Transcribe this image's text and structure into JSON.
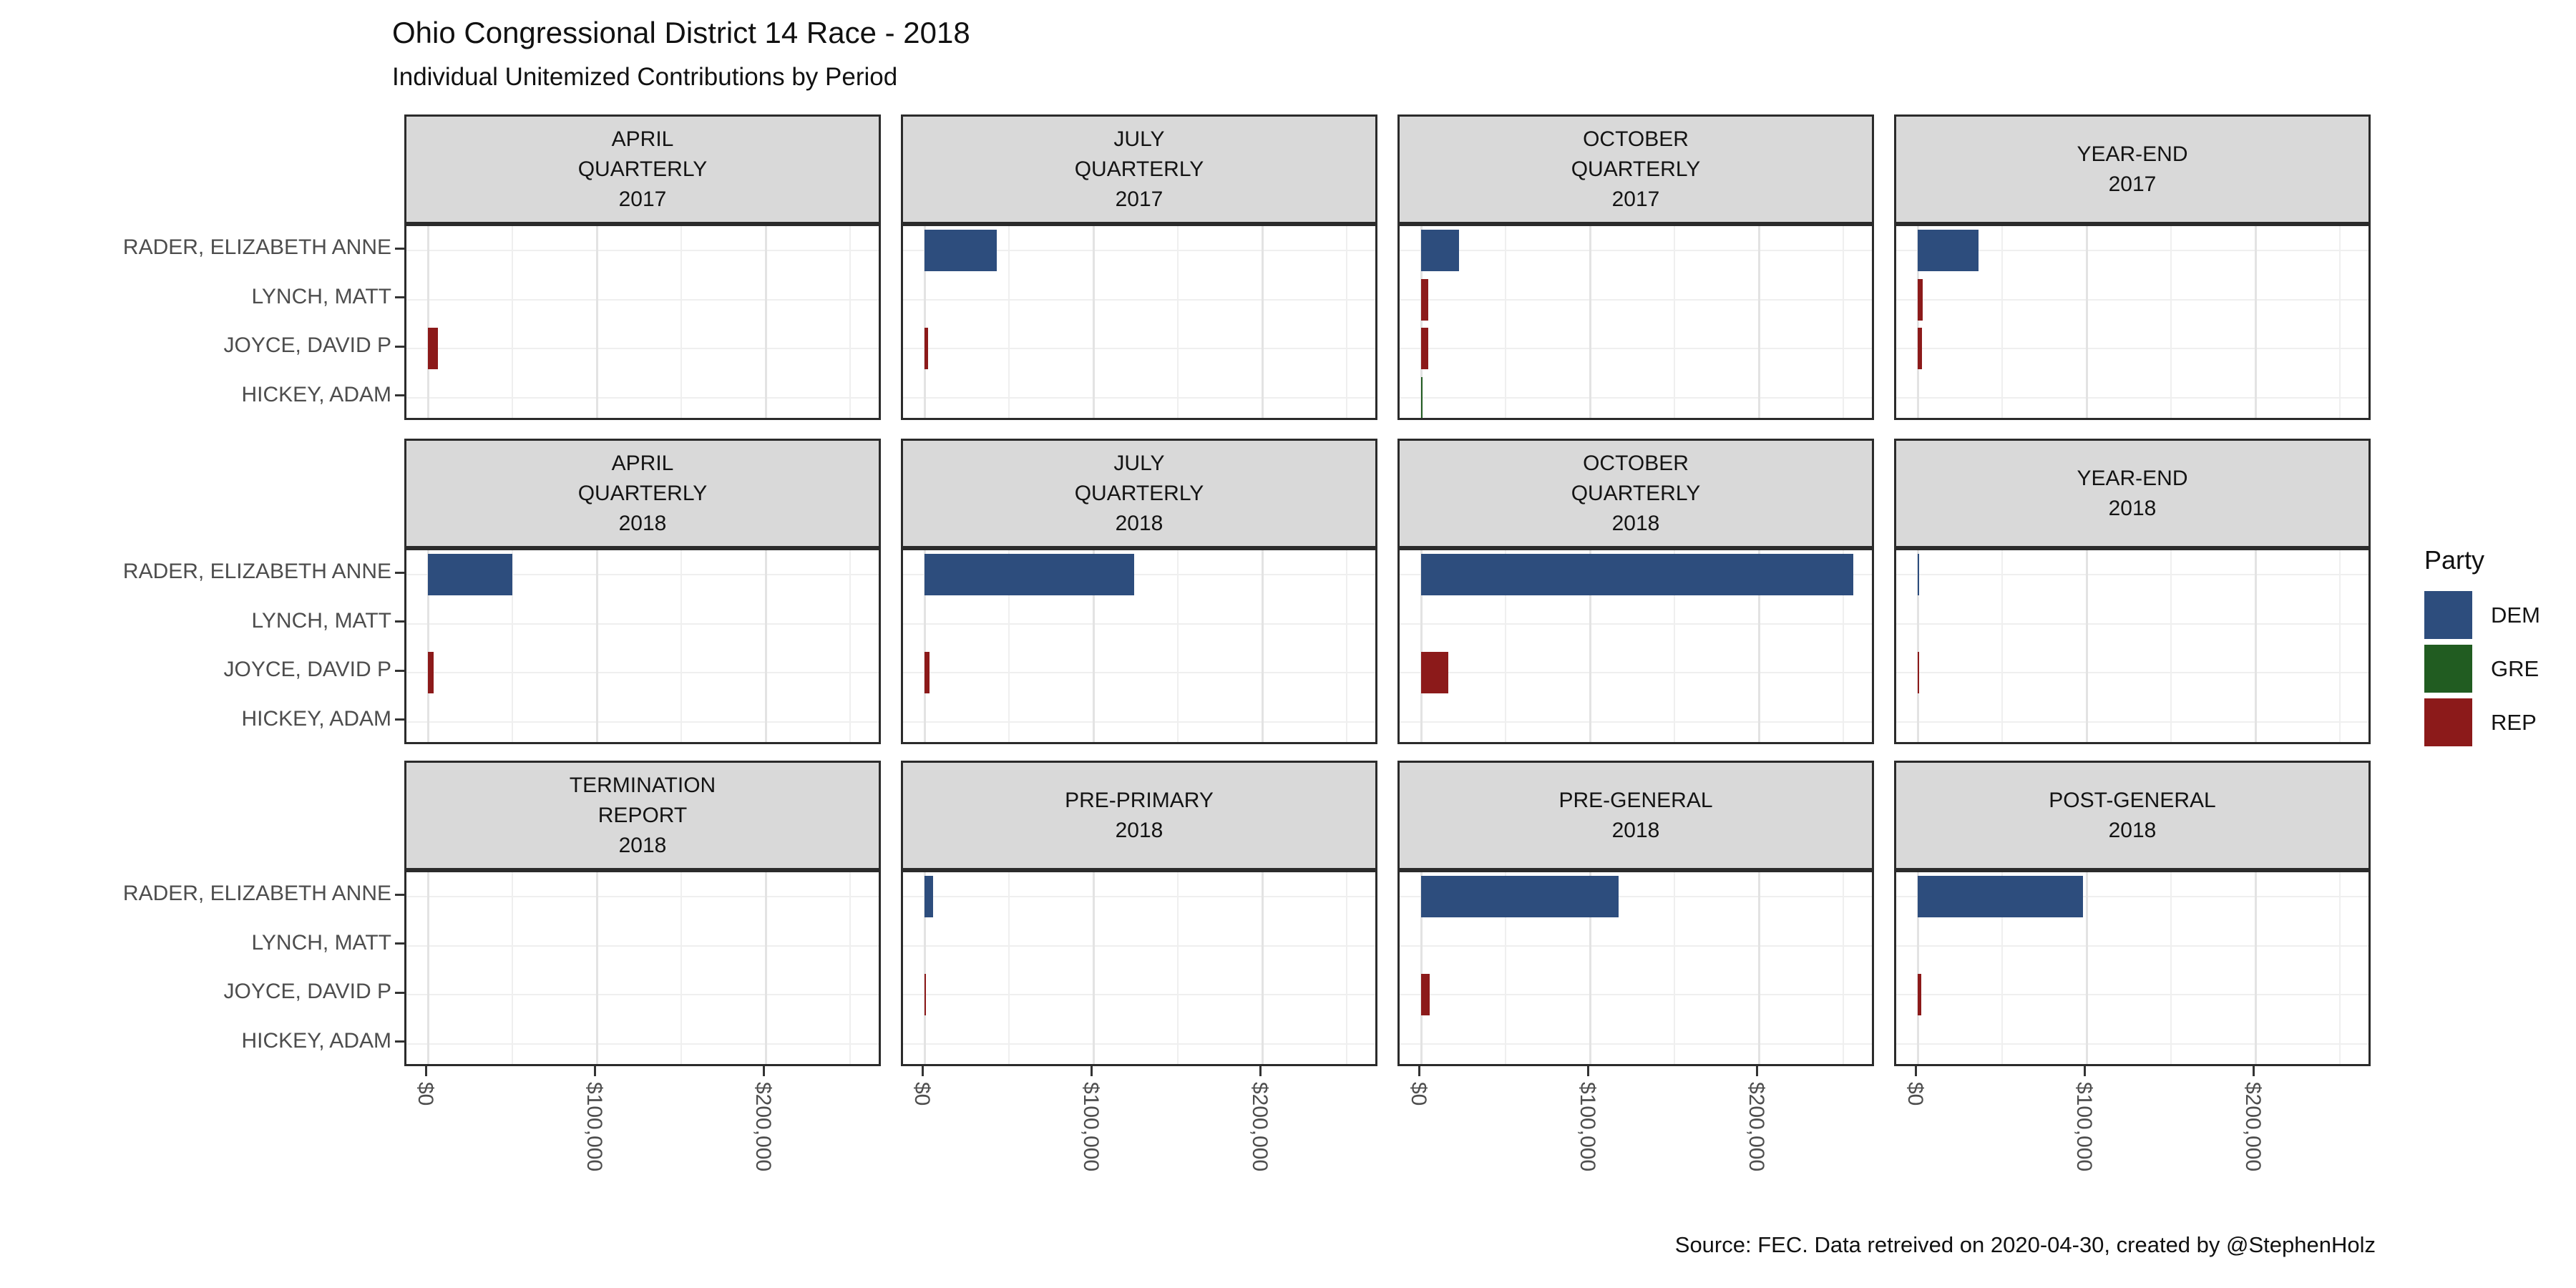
{
  "title": "Ohio Congressional District 14 Race - 2018",
  "subtitle": "Individual Unitemized Contributions by Period",
  "caption": "Source: FEC. Data retreived on 2020-04-30, created by @StephenHolz",
  "legend": {
    "title": "Party",
    "entries": [
      {
        "label": "DEM",
        "color": "#2d4d7d"
      },
      {
        "label": "GRE",
        "color": "#215c21"
      },
      {
        "label": "REP",
        "color": "#8c1a1a"
      }
    ]
  },
  "chart_data": {
    "type": "bar",
    "orientation": "horizontal",
    "title": "Ohio Congressional District 14 Race - 2018",
    "subtitle": "Individual Unitemized Contributions by Period",
    "candidates": [
      "RADER, ELIZABETH ANNE",
      "LYNCH, MATT",
      "JOYCE, DAVID P",
      "HICKEY, ADAM"
    ],
    "party_colors": {
      "DEM": "#2d4d7d",
      "GRE": "#215c21",
      "REP": "#8c1a1a"
    },
    "x_ticks": [
      "$0",
      "$100,000",
      "$200,000"
    ],
    "x_tick_values": [
      0,
      100000,
      200000
    ],
    "xlim": [
      0,
      269000
    ],
    "minor_grid_values": [
      50000,
      150000,
      250000
    ],
    "grid": true,
    "legend_position": "right",
    "facets": [
      {
        "row": 0,
        "col": 0,
        "label_lines": [
          "APRIL",
          "QUARTERLY",
          "2017"
        ],
        "bars": [
          {
            "candidate": "JOYCE, DAVID P",
            "party": "REP",
            "value": 6000
          }
        ]
      },
      {
        "row": 0,
        "col": 1,
        "label_lines": [
          "JULY",
          "QUARTERLY",
          "2017"
        ],
        "bars": [
          {
            "candidate": "RADER, ELIZABETH ANNE",
            "party": "DEM",
            "value": 43000
          },
          {
            "candidate": "JOYCE, DAVID P",
            "party": "REP",
            "value": 2000
          }
        ]
      },
      {
        "row": 0,
        "col": 2,
        "label_lines": [
          "OCTOBER",
          "QUARTERLY",
          "2017"
        ],
        "bars": [
          {
            "candidate": "RADER, ELIZABETH ANNE",
            "party": "DEM",
            "value": 22500
          },
          {
            "candidate": "LYNCH, MATT",
            "party": "REP",
            "value": 4300
          },
          {
            "candidate": "JOYCE, DAVID P",
            "party": "REP",
            "value": 4300
          },
          {
            "candidate": "HICKEY, ADAM",
            "party": "GRE",
            "value": 400
          }
        ]
      },
      {
        "row": 0,
        "col": 3,
        "label_lines": [
          "YEAR-END",
          "2017"
        ],
        "bars": [
          {
            "candidate": "RADER, ELIZABETH ANNE",
            "party": "DEM",
            "value": 36000
          },
          {
            "candidate": "LYNCH, MATT",
            "party": "REP",
            "value": 3000
          },
          {
            "candidate": "JOYCE, DAVID P",
            "party": "REP",
            "value": 2600
          }
        ]
      },
      {
        "row": 1,
        "col": 0,
        "label_lines": [
          "APRIL",
          "QUARTERLY",
          "2018"
        ],
        "bars": [
          {
            "candidate": "RADER, ELIZABETH ANNE",
            "party": "DEM",
            "value": 50000
          },
          {
            "candidate": "JOYCE, DAVID P",
            "party": "REP",
            "value": 3400
          }
        ]
      },
      {
        "row": 1,
        "col": 1,
        "label_lines": [
          "JULY",
          "QUARTERLY",
          "2018"
        ],
        "bars": [
          {
            "candidate": "RADER, ELIZABETH ANNE",
            "party": "DEM",
            "value": 124000
          },
          {
            "candidate": "JOYCE, DAVID P",
            "party": "REP",
            "value": 3000
          }
        ]
      },
      {
        "row": 1,
        "col": 2,
        "label_lines": [
          "OCTOBER",
          "QUARTERLY",
          "2018"
        ],
        "bars": [
          {
            "candidate": "RADER, ELIZABETH ANNE",
            "party": "DEM",
            "value": 256000
          },
          {
            "candidate": "JOYCE, DAVID P",
            "party": "REP",
            "value": 16000
          }
        ]
      },
      {
        "row": 1,
        "col": 3,
        "label_lines": [
          "YEAR-END",
          "2018"
        ],
        "bars": [
          {
            "candidate": "RADER, ELIZABETH ANNE",
            "party": "DEM",
            "value": 300
          },
          {
            "candidate": "JOYCE, DAVID P",
            "party": "REP",
            "value": 250
          }
        ]
      },
      {
        "row": 2,
        "col": 0,
        "label_lines": [
          "TERMINATION",
          "REPORT",
          "2018"
        ],
        "bars": []
      },
      {
        "row": 2,
        "col": 1,
        "label_lines": [
          "PRE-PRIMARY",
          "2018"
        ],
        "bars": [
          {
            "candidate": "RADER, ELIZABETH ANNE",
            "party": "DEM",
            "value": 5000
          },
          {
            "candidate": "JOYCE, DAVID P",
            "party": "REP",
            "value": 600
          }
        ]
      },
      {
        "row": 2,
        "col": 2,
        "label_lines": [
          "PRE-GENERAL",
          "2018"
        ],
        "bars": [
          {
            "candidate": "RADER, ELIZABETH ANNE",
            "party": "DEM",
            "value": 117000
          },
          {
            "candidate": "JOYCE, DAVID P",
            "party": "REP",
            "value": 5000
          }
        ]
      },
      {
        "row": 2,
        "col": 3,
        "label_lines": [
          "POST-GENERAL",
          "2018"
        ],
        "bars": [
          {
            "candidate": "RADER, ELIZABETH ANNE",
            "party": "DEM",
            "value": 98000
          },
          {
            "candidate": "JOYCE, DAVID P",
            "party": "REP",
            "value": 2200
          }
        ]
      }
    ]
  }
}
